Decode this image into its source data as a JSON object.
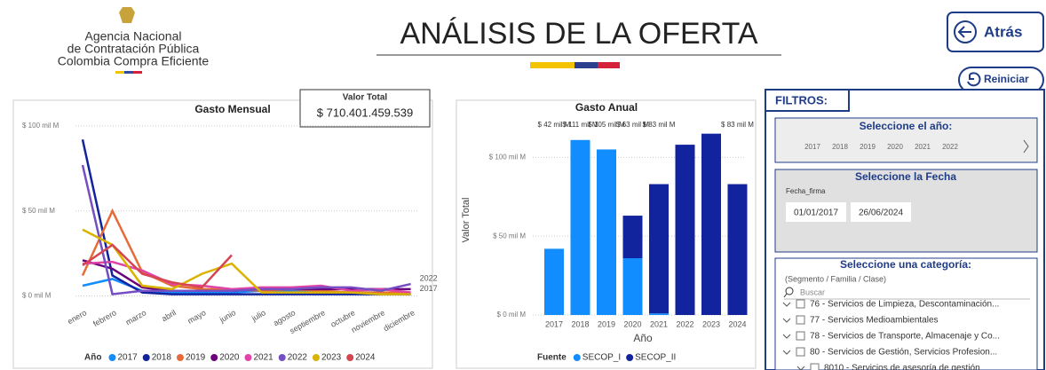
{
  "header": {
    "org": [
      "Agencia Nacional",
      "de Contratación Pública",
      "Colombia Compra Eficiente"
    ],
    "title": "ANÁLISIS DE LA OFERTA",
    "back": "Atrás",
    "reset": "Reiniciar"
  },
  "total": {
    "label": "Valor Total",
    "value": "$ 710.401.459.539"
  },
  "chart_data": [
    {
      "type": "line",
      "title": "Gasto Mensual",
      "legend_title": "Año",
      "grid": true,
      "categories": [
        "enero",
        "febrero",
        "marzo",
        "abril",
        "mayo",
        "junio",
        "julio",
        "agosto",
        "septiembre",
        "octubre",
        "noviembre",
        "diciembre"
      ],
      "ylim": [
        -6,
        101
      ],
      "yticks": [
        {
          "value": 0,
          "label": "$ 0 mil M"
        },
        {
          "value": 50,
          "label": "$ 50 mil M"
        },
        {
          "value": 100,
          "label": "$ 100 mil M"
        }
      ],
      "series": [
        {
          "name": "2017",
          "color": "#118dff",
          "values": [
            6,
            10,
            3,
            2,
            2,
            2,
            3,
            3,
            2,
            2,
            2,
            1
          ]
        },
        {
          "name": "2018",
          "color": "#12239e",
          "values": [
            92,
            12,
            2,
            1,
            1,
            1,
            1,
            1,
            1,
            1,
            1,
            1
          ]
        },
        {
          "name": "2019",
          "color": "#e66c37",
          "values": [
            12,
            50,
            14,
            6,
            4,
            4,
            3,
            4,
            3,
            2,
            2,
            2
          ]
        },
        {
          "name": "2020",
          "color": "#6b007b",
          "values": [
            21,
            16,
            5,
            3,
            3,
            3,
            4,
            4,
            4,
            4,
            4,
            4
          ]
        },
        {
          "name": "2021",
          "color": "#e044a7",
          "values": [
            19,
            20,
            15,
            7,
            6,
            4,
            5,
            5,
            6,
            3,
            4,
            2
          ]
        },
        {
          "name": "2022",
          "color": "#744ec2",
          "values": [
            77,
            1,
            3,
            3,
            3,
            3,
            4,
            4,
            5,
            5,
            3,
            7
          ]
        },
        {
          "name": "2023",
          "color": "#d9b300",
          "values": [
            39,
            30,
            6,
            4,
            13,
            19,
            2,
            2,
            2,
            2,
            1,
            1
          ]
        },
        {
          "name": "2024",
          "color": "#d64550",
          "values": [
            18,
            30,
            13,
            8,
            5,
            24,
            null,
            null,
            null,
            null,
            null,
            null
          ]
        }
      ]
    },
    {
      "type": "stacked_bar",
      "title": "Gasto Anual",
      "x_label": "Año",
      "y_label": "Valor Total",
      "legend_title": "Fuente",
      "grid": true,
      "categories": [
        "2017",
        "2018",
        "2019",
        "2020",
        "2021",
        "2022",
        "2023",
        "2024"
      ],
      "ylim": [
        0,
        121
      ],
      "yticks": [
        {
          "value": 0,
          "label": "$ 0 mil M"
        },
        {
          "value": 50,
          "label": "$ 50 mil M"
        },
        {
          "value": 100,
          "label": "$ 100 mil M"
        }
      ],
      "total_labels": [
        "$ 42 mil M",
        "$ 111 mil M",
        "$ 105 mil M",
        "$ 63 mil M",
        "$ 83 mil M",
        null,
        null,
        "$ 83 mil M"
      ],
      "series": [
        {
          "name": "SECOP_I",
          "color": "#118dff",
          "values": [
            42,
            111,
            105,
            36,
            1,
            0,
            0,
            0
          ]
        },
        {
          "name": "SECOP_II",
          "color": "#12239e",
          "values": [
            0,
            0,
            0,
            27,
            82,
            108,
            115,
            83
          ]
        }
      ]
    }
  ],
  "filters": {
    "title": "FILTROS:",
    "year": {
      "title": "Seleccione el año:",
      "options": [
        "2017",
        "2018",
        "2019",
        "2020",
        "2021",
        "2022"
      ]
    },
    "date": {
      "title": "Seleccione la Fecha",
      "field": "Fecha_firma",
      "start": "01/01/2017",
      "end": "26/06/2024"
    },
    "category": {
      "title": "Seleccione una categoría:",
      "subtitle": "(Segmento / Familia / Clase)",
      "search": "Buscar",
      "items": [
        "76 - Servicios de Limpieza, Descontaminación...",
        "77 - Servicios Medioambientales",
        "78 - Servicios de Transporte, Almacenaje y Co...",
        "80 - Servicios de Gestión, Servicios Profesion...",
        "8010 - Servicios de asesoría de gestión"
      ]
    }
  }
}
